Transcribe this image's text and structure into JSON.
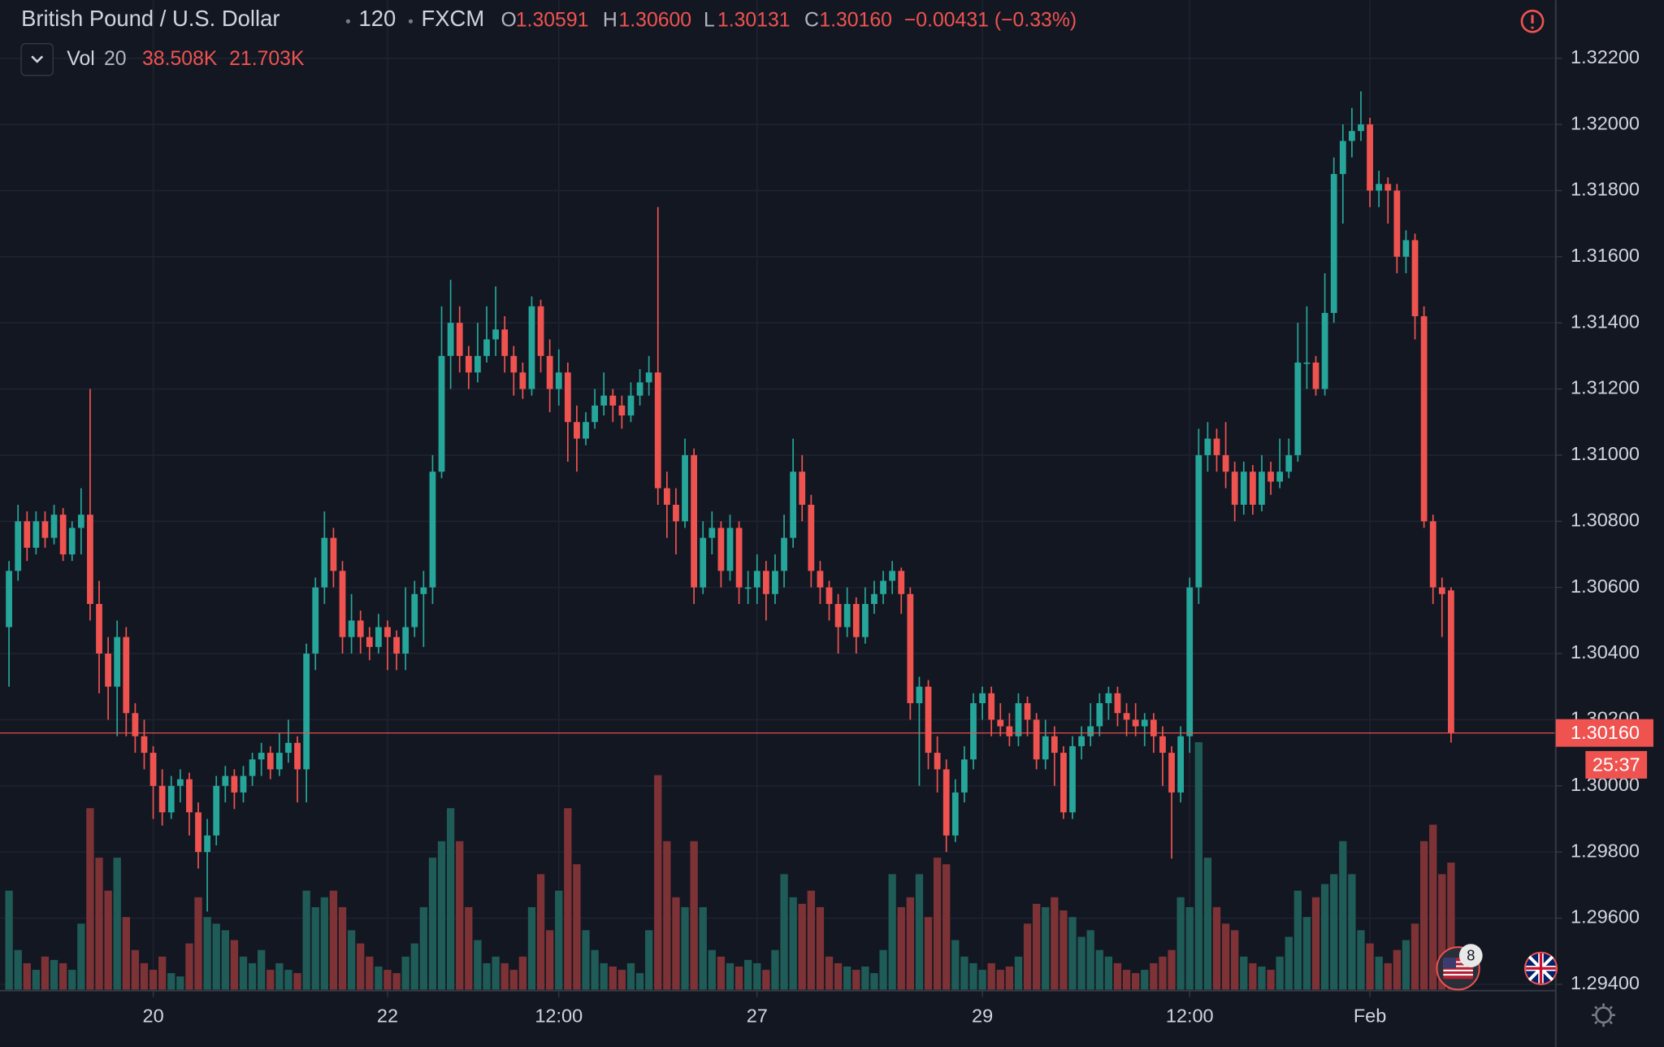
{
  "chart_data": {
    "type": "candlestick",
    "title": "British Pound / U.S. Dollar",
    "interval": "120",
    "source": "FXCM",
    "ohlc_legend": [
      {
        "label": "O",
        "value": "1.30591"
      },
      {
        "label": "H",
        "value": "1.30600"
      },
      {
        "label": "L",
        "value": "1.30131"
      },
      {
        "label": "C",
        "value": "1.30160"
      }
    ],
    "change": "−0.00431 (−0.33%)",
    "volume_legend": {
      "label": "Vol",
      "length": "20",
      "value": "38.508K",
      "ma": "21.703K"
    },
    "up_color": "#26a69a",
    "down_color": "#ef5350",
    "volume_up_color": "#1f5b57",
    "volume_down_color": "#7d3236",
    "grid": true,
    "xlim": [
      -1,
      171.5
    ],
    "xticks": [
      {
        "value": 16,
        "label": "20"
      },
      {
        "value": 42,
        "label": "22"
      },
      {
        "value": 61,
        "label": "12:00"
      },
      {
        "value": 83,
        "label": "27"
      },
      {
        "value": 108,
        "label": "29"
      },
      {
        "value": 131,
        "label": "12:00"
      },
      {
        "value": 151,
        "label": "Feb"
      }
    ],
    "ylim": [
      1.29384,
      1.32376
    ],
    "yticks": [
      {
        "value": 1.294,
        "label": "1.29400"
      },
      {
        "value": 1.296,
        "label": "1.29600"
      },
      {
        "value": 1.298,
        "label": "1.29800"
      },
      {
        "value": 1.3,
        "label": "1.30000"
      },
      {
        "value": 1.302,
        "label": "1.30200"
      },
      {
        "value": 1.304,
        "label": "1.30400"
      },
      {
        "value": 1.306,
        "label": "1.30600"
      },
      {
        "value": 1.308,
        "label": "1.30800"
      },
      {
        "value": 1.31,
        "label": "1.31000"
      },
      {
        "value": 1.312,
        "label": "1.31200"
      },
      {
        "value": 1.314,
        "label": "1.31400"
      },
      {
        "value": 1.316,
        "label": "1.31600"
      },
      {
        "value": 1.318,
        "label": "1.31800"
      },
      {
        "value": 1.32,
        "label": "1.32000"
      },
      {
        "value": 1.322,
        "label": "1.32200"
      }
    ],
    "volume_ylim": [
      0,
      300
    ],
    "last_price": {
      "value": 1.3016,
      "label": "1.30160"
    },
    "countdown": "25:37",
    "event_badge": "8",
    "candles": [
      [
        1.3048,
        1.3068,
        1.303,
        1.3065
      ],
      [
        1.3065,
        1.3085,
        1.3062,
        1.308
      ],
      [
        1.308,
        1.3083,
        1.3068,
        1.3072
      ],
      [
        1.3072,
        1.3083,
        1.307,
        1.308
      ],
      [
        1.308,
        1.3083,
        1.3072,
        1.3075
      ],
      [
        1.3075,
        1.3085,
        1.3073,
        1.3082
      ],
      [
        1.3082,
        1.3084,
        1.3068,
        1.307
      ],
      [
        1.307,
        1.308,
        1.3068,
        1.3078
      ],
      [
        1.3078,
        1.309,
        1.307,
        1.3082
      ],
      [
        1.3082,
        1.312,
        1.305,
        1.3055
      ],
      [
        1.3055,
        1.3062,
        1.3028,
        1.304
      ],
      [
        1.304,
        1.3045,
        1.302,
        1.303
      ],
      [
        1.303,
        1.305,
        1.3015,
        1.3045
      ],
      [
        1.3045,
        1.3048,
        1.3015,
        1.3022
      ],
      [
        1.3022,
        1.3025,
        1.301,
        1.3015
      ],
      [
        1.3015,
        1.302,
        1.3005,
        1.301
      ],
      [
        1.301,
        1.3012,
        1.299,
        1.3
      ],
      [
        1.3,
        1.3005,
        1.2988,
        1.2992
      ],
      [
        1.2992,
        1.3003,
        1.299,
        1.3
      ],
      [
        1.3,
        1.3005,
        1.2995,
        1.3002
      ],
      [
        1.3002,
        1.3004,
        1.2985,
        1.2992
      ],
      [
        1.2992,
        1.2995,
        1.2975,
        1.298
      ],
      [
        1.298,
        1.299,
        1.2962,
        1.2985
      ],
      [
        1.2985,
        1.3003,
        1.2982,
        1.3
      ],
      [
        1.3,
        1.3006,
        1.2995,
        1.3003
      ],
      [
        1.3003,
        1.3005,
        1.2993,
        1.2998
      ],
      [
        1.2998,
        1.3006,
        1.2995,
        1.3003
      ],
      [
        1.3003,
        1.301,
        1.3,
        1.3008
      ],
      [
        1.3008,
        1.3013,
        1.3003,
        1.301
      ],
      [
        1.301,
        1.3012,
        1.3002,
        1.3005
      ],
      [
        1.3005,
        1.3016,
        1.3003,
        1.301
      ],
      [
        1.301,
        1.302,
        1.3007,
        1.3013
      ],
      [
        1.3013,
        1.3015,
        1.2995,
        1.3005
      ],
      [
        1.3005,
        1.3043,
        1.2995,
        1.304
      ],
      [
        1.304,
        1.3063,
        1.3035,
        1.306
      ],
      [
        1.306,
        1.3083,
        1.3055,
        1.3075
      ],
      [
        1.3075,
        1.3078,
        1.306,
        1.3065
      ],
      [
        1.3065,
        1.3068,
        1.304,
        1.3045
      ],
      [
        1.3045,
        1.3058,
        1.304,
        1.305
      ],
      [
        1.305,
        1.3053,
        1.304,
        1.3045
      ],
      [
        1.3045,
        1.3048,
        1.3038,
        1.3042
      ],
      [
        1.3042,
        1.3052,
        1.304,
        1.3048
      ],
      [
        1.3048,
        1.305,
        1.3035,
        1.3045
      ],
      [
        1.3045,
        1.3047,
        1.3035,
        1.304
      ],
      [
        1.304,
        1.306,
        1.3035,
        1.3048
      ],
      [
        1.3048,
        1.3062,
        1.3045,
        1.3058
      ],
      [
        1.3058,
        1.3065,
        1.3042,
        1.306
      ],
      [
        1.306,
        1.31,
        1.3055,
        1.3095
      ],
      [
        1.3095,
        1.3145,
        1.3093,
        1.313
      ],
      [
        1.313,
        1.3153,
        1.312,
        1.314
      ],
      [
        1.314,
        1.3145,
        1.3125,
        1.313
      ],
      [
        1.313,
        1.3133,
        1.312,
        1.3125
      ],
      [
        1.3125,
        1.314,
        1.3122,
        1.313
      ],
      [
        1.313,
        1.3145,
        1.3128,
        1.3135
      ],
      [
        1.3135,
        1.3151,
        1.313,
        1.3138
      ],
      [
        1.3138,
        1.3142,
        1.3125,
        1.313
      ],
      [
        1.313,
        1.3133,
        1.3118,
        1.3125
      ],
      [
        1.3125,
        1.3128,
        1.3117,
        1.312
      ],
      [
        1.312,
        1.3148,
        1.3118,
        1.3145
      ],
      [
        1.3145,
        1.3147,
        1.3125,
        1.313
      ],
      [
        1.313,
        1.3135,
        1.3113,
        1.312
      ],
      [
        1.312,
        1.3132,
        1.3115,
        1.3125
      ],
      [
        1.3125,
        1.3128,
        1.3098,
        1.311
      ],
      [
        1.311,
        1.3115,
        1.3095,
        1.3105
      ],
      [
        1.3105,
        1.3113,
        1.3103,
        1.311
      ],
      [
        1.311,
        1.312,
        1.3108,
        1.3115
      ],
      [
        1.3115,
        1.3125,
        1.3112,
        1.3118
      ],
      [
        1.3118,
        1.312,
        1.311,
        1.3115
      ],
      [
        1.3115,
        1.3118,
        1.3108,
        1.3112
      ],
      [
        1.3112,
        1.3122,
        1.311,
        1.3118
      ],
      [
        1.3118,
        1.3126,
        1.3115,
        1.3122
      ],
      [
        1.3122,
        1.313,
        1.3118,
        1.3125
      ],
      [
        1.3125,
        1.3175,
        1.3085,
        1.309
      ],
      [
        1.309,
        1.3095,
        1.3075,
        1.3085
      ],
      [
        1.3085,
        1.309,
        1.307,
        1.308
      ],
      [
        1.308,
        1.3105,
        1.3078,
        1.31
      ],
      [
        1.31,
        1.3102,
        1.3055,
        1.306
      ],
      [
        1.306,
        1.308,
        1.3058,
        1.3075
      ],
      [
        1.3075,
        1.3083,
        1.307,
        1.3078
      ],
      [
        1.3078,
        1.308,
        1.306,
        1.3065
      ],
      [
        1.3065,
        1.3082,
        1.3062,
        1.3078
      ],
      [
        1.3078,
        1.308,
        1.3055,
        1.306
      ],
      [
        1.306,
        1.3065,
        1.3055,
        1.306
      ],
      [
        1.306,
        1.307,
        1.3055,
        1.3065
      ],
      [
        1.3065,
        1.3068,
        1.305,
        1.3058
      ],
      [
        1.3058,
        1.307,
        1.3055,
        1.3065
      ],
      [
        1.3065,
        1.3082,
        1.306,
        1.3075
      ],
      [
        1.3075,
        1.3105,
        1.3072,
        1.3095
      ],
      [
        1.3095,
        1.31,
        1.308,
        1.3085
      ],
      [
        1.3085,
        1.3088,
        1.306,
        1.3065
      ],
      [
        1.3065,
        1.3068,
        1.3055,
        1.306
      ],
      [
        1.306,
        1.3062,
        1.305,
        1.3055
      ],
      [
        1.3055,
        1.3058,
        1.304,
        1.3048
      ],
      [
        1.3048,
        1.306,
        1.3045,
        1.3055
      ],
      [
        1.3055,
        1.3057,
        1.304,
        1.3045
      ],
      [
        1.3045,
        1.306,
        1.3043,
        1.3055
      ],
      [
        1.3055,
        1.3062,
        1.3052,
        1.3058
      ],
      [
        1.3058,
        1.3065,
        1.3055,
        1.3062
      ],
      [
        1.3062,
        1.3068,
        1.3058,
        1.3065
      ],
      [
        1.3065,
        1.3066,
        1.3052,
        1.3058
      ],
      [
        1.3058,
        1.306,
        1.302,
        1.3025
      ],
      [
        1.3025,
        1.3033,
        1.3,
        1.303
      ],
      [
        1.303,
        1.3032,
        1.3005,
        1.301
      ],
      [
        1.301,
        1.3015,
        1.2998,
        1.3005
      ],
      [
        1.3005,
        1.3008,
        1.298,
        1.2985
      ],
      [
        1.2985,
        1.3002,
        1.2983,
        1.2998
      ],
      [
        1.2998,
        1.3012,
        1.2995,
        1.3008
      ],
      [
        1.3008,
        1.3028,
        1.3005,
        1.3025
      ],
      [
        1.3025,
        1.303,
        1.302,
        1.3028
      ],
      [
        1.3028,
        1.303,
        1.3015,
        1.302
      ],
      [
        1.302,
        1.3025,
        1.3015,
        1.3018
      ],
      [
        1.3018,
        1.3022,
        1.3012,
        1.3015
      ],
      [
        1.3015,
        1.3028,
        1.3012,
        1.3025
      ],
      [
        1.3025,
        1.3027,
        1.3015,
        1.302
      ],
      [
        1.302,
        1.3022,
        1.3005,
        1.3008
      ],
      [
        1.3008,
        1.302,
        1.3005,
        1.3015
      ],
      [
        1.3015,
        1.3018,
        1.3,
        1.301
      ],
      [
        1.301,
        1.3012,
        1.299,
        1.2992
      ],
      [
        1.2992,
        1.3015,
        1.299,
        1.3012
      ],
      [
        1.3012,
        1.3018,
        1.3008,
        1.3015
      ],
      [
        1.3015,
        1.3025,
        1.3012,
        1.3018
      ],
      [
        1.3018,
        1.3028,
        1.3015,
        1.3025
      ],
      [
        1.3025,
        1.303,
        1.302,
        1.3028
      ],
      [
        1.3028,
        1.303,
        1.3018,
        1.3022
      ],
      [
        1.3022,
        1.3025,
        1.3015,
        1.302
      ],
      [
        1.302,
        1.3025,
        1.3015,
        1.3018
      ],
      [
        1.3018,
        1.3022,
        1.3012,
        1.302
      ],
      [
        1.302,
        1.3022,
        1.301,
        1.3015
      ],
      [
        1.3015,
        1.3018,
        1.3,
        1.301
      ],
      [
        1.301,
        1.3012,
        1.2978,
        1.2998
      ],
      [
        1.2998,
        1.3018,
        1.2995,
        1.3015
      ],
      [
        1.3015,
        1.3063,
        1.301,
        1.306
      ],
      [
        1.306,
        1.3108,
        1.3055,
        1.31
      ],
      [
        1.31,
        1.311,
        1.3095,
        1.3105
      ],
      [
        1.3105,
        1.3108,
        1.3095,
        1.31
      ],
      [
        1.31,
        1.311,
        1.309,
        1.3095
      ],
      [
        1.3095,
        1.3098,
        1.308,
        1.3085
      ],
      [
        1.3085,
        1.3098,
        1.3082,
        1.3095
      ],
      [
        1.3095,
        1.3097,
        1.3082,
        1.3085
      ],
      [
        1.3085,
        1.31,
        1.3083,
        1.3095
      ],
      [
        1.3095,
        1.3098,
        1.3088,
        1.3092
      ],
      [
        1.3092,
        1.3105,
        1.309,
        1.3095
      ],
      [
        1.3095,
        1.3105,
        1.3093,
        1.31
      ],
      [
        1.31,
        1.314,
        1.3098,
        1.3128
      ],
      [
        1.3128,
        1.3145,
        1.312,
        1.3128
      ],
      [
        1.3128,
        1.313,
        1.3118,
        1.312
      ],
      [
        1.312,
        1.3155,
        1.3118,
        1.3143
      ],
      [
        1.3143,
        1.319,
        1.314,
        1.3185
      ],
      [
        1.3185,
        1.32,
        1.317,
        1.3195
      ],
      [
        1.3195,
        1.3205,
        1.319,
        1.3198
      ],
      [
        1.3198,
        1.321,
        1.3195,
        1.32
      ],
      [
        1.32,
        1.3202,
        1.3175,
        1.318
      ],
      [
        1.318,
        1.3186,
        1.3175,
        1.3182
      ],
      [
        1.3182,
        1.3184,
        1.317,
        1.318
      ],
      [
        1.318,
        1.3182,
        1.3155,
        1.316
      ],
      [
        1.316,
        1.3168,
        1.3155,
        1.3165
      ],
      [
        1.3165,
        1.3167,
        1.3135,
        1.3142
      ],
      [
        1.3142,
        1.3145,
        1.3078,
        1.308
      ],
      [
        1.308,
        1.3082,
        1.3055,
        1.306
      ],
      [
        1.306,
        1.3063,
        1.3045,
        1.3058
      ],
      [
        1.30591,
        1.306,
        1.30131,
        1.3016
      ]
    ],
    "volumes": [
      30,
      12,
      8,
      6,
      10,
      9,
      8,
      6,
      20,
      55,
      40,
      30,
      40,
      22,
      12,
      8,
      6,
      10,
      5,
      4,
      14,
      28,
      22,
      20,
      18,
      15,
      10,
      8,
      12,
      6,
      8,
      6,
      5,
      30,
      25,
      28,
      30,
      25,
      18,
      14,
      10,
      7,
      6,
      5,
      10,
      14,
      25,
      40,
      45,
      55,
      45,
      25,
      15,
      8,
      10,
      8,
      6,
      10,
      25,
      35,
      18,
      30,
      55,
      38,
      18,
      12,
      8,
      7,
      6,
      8,
      5,
      18,
      65,
      45,
      28,
      25,
      45,
      25,
      12,
      10,
      8,
      7,
      9,
      8,
      6,
      12,
      35,
      28,
      26,
      30,
      25,
      10,
      8,
      7,
      6,
      7,
      5,
      12,
      35,
      25,
      28,
      35,
      22,
      40,
      38,
      15,
      10,
      8,
      6,
      8,
      6,
      7,
      10,
      20,
      26,
      25,
      28,
      24,
      22,
      16,
      18,
      12,
      10,
      8,
      6,
      5,
      6,
      8,
      10,
      12,
      28,
      25,
      75,
      40,
      25,
      20,
      18,
      10,
      8,
      7,
      6,
      10,
      16,
      30,
      22,
      28,
      32,
      35,
      45,
      35,
      18,
      14,
      10,
      8,
      12,
      15,
      20,
      45,
      50,
      35,
      38.508
    ]
  }
}
